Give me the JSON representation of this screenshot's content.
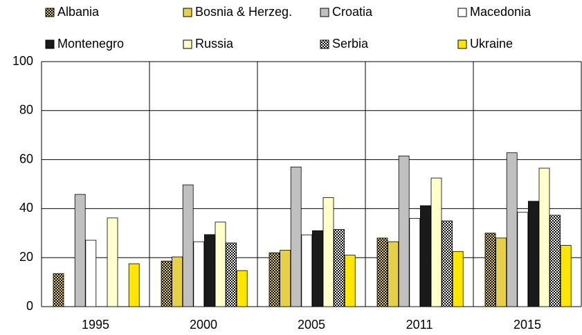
{
  "chart_data": {
    "type": "bar",
    "categories": [
      "1995",
      "2000",
      "2005",
      "2011",
      "2015"
    ],
    "series": [
      {
        "name": "Albania",
        "color": "#e6d04a",
        "pattern": "checker",
        "values": [
          13.5,
          18.6,
          22,
          28,
          30
        ]
      },
      {
        "name": "Bosnia & Herzeg.",
        "color": "#e6d04a",
        "values": [
          null,
          20.3,
          23,
          26.5,
          28
        ]
      },
      {
        "name": "Croatia",
        "color": "#c0c0c0",
        "values": [
          45.8,
          49.7,
          57,
          61.5,
          62.8
        ]
      },
      {
        "name": "Macedonia",
        "color": "#ffffff",
        "values": [
          27.1,
          26.5,
          29.3,
          36,
          38.5
        ]
      },
      {
        "name": "Montenegro",
        "color": "#1a1a1a",
        "values": [
          null,
          29.4,
          31,
          41.2,
          43
        ]
      },
      {
        "name": "Russia",
        "color": "#ffffcc",
        "values": [
          36.2,
          34.5,
          44.5,
          52.5,
          56.5
        ]
      },
      {
        "name": "Serbia",
        "color": "#ffffff",
        "pattern": "checker",
        "values": [
          null,
          26,
          31.5,
          35,
          37.3
        ]
      },
      {
        "name": "Ukraine",
        "color": "#ffe600",
        "values": [
          17.5,
          14.7,
          21,
          22.5,
          25
        ]
      }
    ],
    "ylim": [
      0,
      100
    ],
    "yticks": [
      0,
      20,
      40,
      60,
      80,
      100
    ],
    "grid": true,
    "legend": "top"
  }
}
